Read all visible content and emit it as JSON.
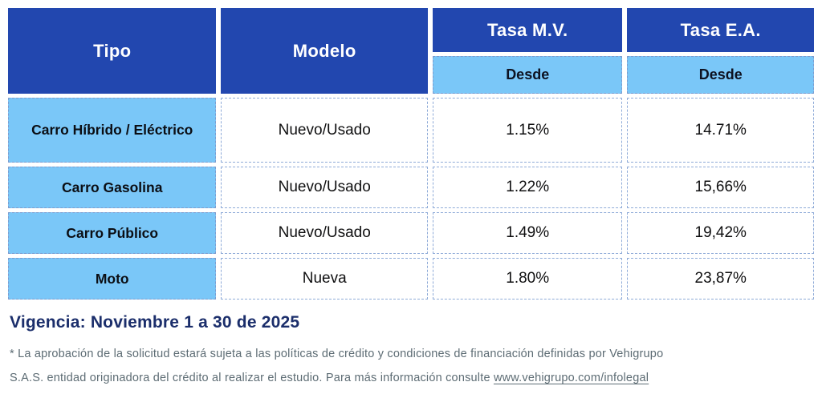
{
  "table": {
    "columns": [
      {
        "label": "Tipo"
      },
      {
        "label": "Modelo"
      },
      {
        "label": "Tasa M.V.",
        "sub": "Desde"
      },
      {
        "label": "Tasa E.A.",
        "sub": "Desde"
      }
    ],
    "rows": [
      {
        "tipo": "Carro Híbrido / Eléctrico",
        "modelo": "Nuevo/Usado",
        "tasa_mv": "1.15%",
        "tasa_ea": "14.71%"
      },
      {
        "tipo": "Carro Gasolina",
        "modelo": "Nuevo/Usado",
        "tasa_mv": "1.22%",
        "tasa_ea": "15,66%"
      },
      {
        "tipo": "Carro Público",
        "modelo": "Nuevo/Usado",
        "tasa_mv": "1.49%",
        "tasa_ea": "19,42%"
      },
      {
        "tipo": "Moto",
        "modelo": "Nueva",
        "tasa_mv": "1.80%",
        "tasa_ea": "23,87%"
      }
    ]
  },
  "footer": {
    "vigencia": "Vigencia: Noviembre 1 a 30 de 2025",
    "disclaimer_line1": "* La aprobación de la solicitud estará sujeta a las políticas de crédito y condiciones de financiación definidas por Vehigrupo",
    "disclaimer_line2": "S.A.S. entidad originadora del crédito al realizar el estudio. Para más información consulte ",
    "disclaimer_link": "www.vehigrupo.com/infolegal"
  },
  "colors": {
    "header_blue": "#2247AF",
    "light_blue": "#7AC7F8",
    "navy_text": "#1B2E6B",
    "gray_text": "#5D6C74",
    "dashed_border": "#8FABD8"
  }
}
